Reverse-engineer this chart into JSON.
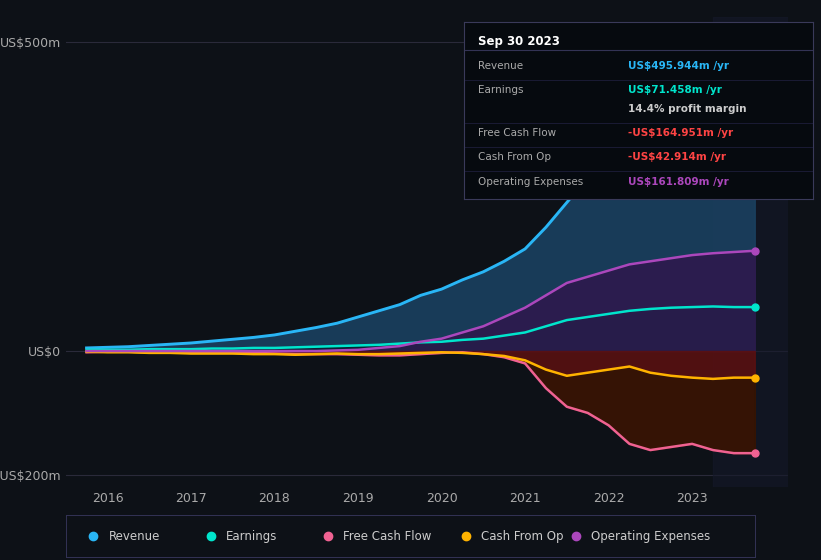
{
  "bg_color": "#0d1117",
  "plot_bg_color": "#0d1117",
  "grid_color": "#2a2a3a",
  "title_date": "Sep 30 2023",
  "years": [
    2015.75,
    2016.0,
    2016.25,
    2016.5,
    2016.75,
    2017.0,
    2017.25,
    2017.5,
    2017.75,
    2018.0,
    2018.25,
    2018.5,
    2018.75,
    2019.0,
    2019.25,
    2019.5,
    2019.75,
    2020.0,
    2020.25,
    2020.5,
    2020.75,
    2021.0,
    2021.25,
    2021.5,
    2021.75,
    2022.0,
    2022.25,
    2022.5,
    2022.75,
    2023.0,
    2023.25,
    2023.5,
    2023.75
  ],
  "revenue": [
    5,
    6,
    7,
    9,
    11,
    13,
    16,
    19,
    22,
    26,
    32,
    38,
    45,
    55,
    65,
    75,
    90,
    100,
    115,
    128,
    145,
    165,
    200,
    240,
    280,
    330,
    370,
    400,
    430,
    460,
    480,
    495,
    496
  ],
  "earnings": [
    2,
    2,
    2,
    3,
    3,
    3,
    4,
    4,
    5,
    5,
    6,
    7,
    8,
    9,
    10,
    12,
    14,
    15,
    18,
    20,
    25,
    30,
    40,
    50,
    55,
    60,
    65,
    68,
    70,
    71,
    72,
    71,
    71
  ],
  "free_cash_flow": [
    -2,
    -1,
    -1,
    -2,
    -2,
    -3,
    -3,
    -3,
    -3,
    -4,
    -5,
    -5,
    -5,
    -6,
    -7,
    -7,
    -5,
    -3,
    -2,
    -5,
    -10,
    -20,
    -60,
    -90,
    -100,
    -120,
    -150,
    -160,
    -155,
    -150,
    -160,
    -165,
    -165
  ],
  "cash_from_op": [
    -1,
    -2,
    -2,
    -3,
    -3,
    -4,
    -4,
    -4,
    -5,
    -5,
    -6,
    -5,
    -4,
    -5,
    -5,
    -4,
    -3,
    -2,
    -3,
    -5,
    -8,
    -15,
    -30,
    -40,
    -35,
    -30,
    -25,
    -35,
    -40,
    -43,
    -45,
    -43,
    -43
  ],
  "op_expenses": [
    0,
    0,
    0,
    0,
    0,
    0,
    0,
    0,
    0,
    0,
    0,
    0,
    1,
    2,
    5,
    8,
    15,
    20,
    30,
    40,
    55,
    70,
    90,
    110,
    120,
    130,
    140,
    145,
    150,
    155,
    158,
    160,
    162
  ],
  "revenue_color": "#29b6f6",
  "earnings_color": "#00e5cc",
  "fcf_color": "#f06292",
  "cashop_color": "#ffb300",
  "opex_color": "#ab47bc",
  "revenue_fill": "#1a4060",
  "earnings_fill": "#0a2030",
  "opex_fill": "#2d1b4e",
  "fcf_fill": "#5c1010",
  "ylim_min": -220,
  "ylim_max": 540,
  "yticks": [
    -200,
    0,
    500
  ],
  "ytick_labels": [
    "-US$200m",
    "US$0",
    "US$500m"
  ],
  "xticks": [
    2016,
    2017,
    2018,
    2019,
    2020,
    2021,
    2022,
    2023
  ],
  "legend_items": [
    {
      "label": "Revenue",
      "color": "#29b6f6"
    },
    {
      "label": "Earnings",
      "color": "#00e5cc"
    },
    {
      "label": "Free Cash Flow",
      "color": "#f06292"
    },
    {
      "label": "Cash From Op",
      "color": "#ffb300"
    },
    {
      "label": "Operating Expenses",
      "color": "#ab47bc"
    }
  ],
  "info_rows": [
    {
      "label": "Revenue",
      "value": "US$495.944m /yr",
      "value_color": "#29b6f6"
    },
    {
      "label": "Earnings",
      "value": "US$71.458m /yr",
      "value_color": "#00e5cc"
    },
    {
      "label": "",
      "value": "14.4% profit margin",
      "value_color": "#cccccc"
    },
    {
      "label": "Free Cash Flow",
      "value": "-US$164.951m /yr",
      "value_color": "#ff4444"
    },
    {
      "label": "Cash From Op",
      "value": "-US$42.914m /yr",
      "value_color": "#ff4444"
    },
    {
      "label": "Operating Expenses",
      "value": "US$161.809m /yr",
      "value_color": "#ab47bc"
    }
  ]
}
